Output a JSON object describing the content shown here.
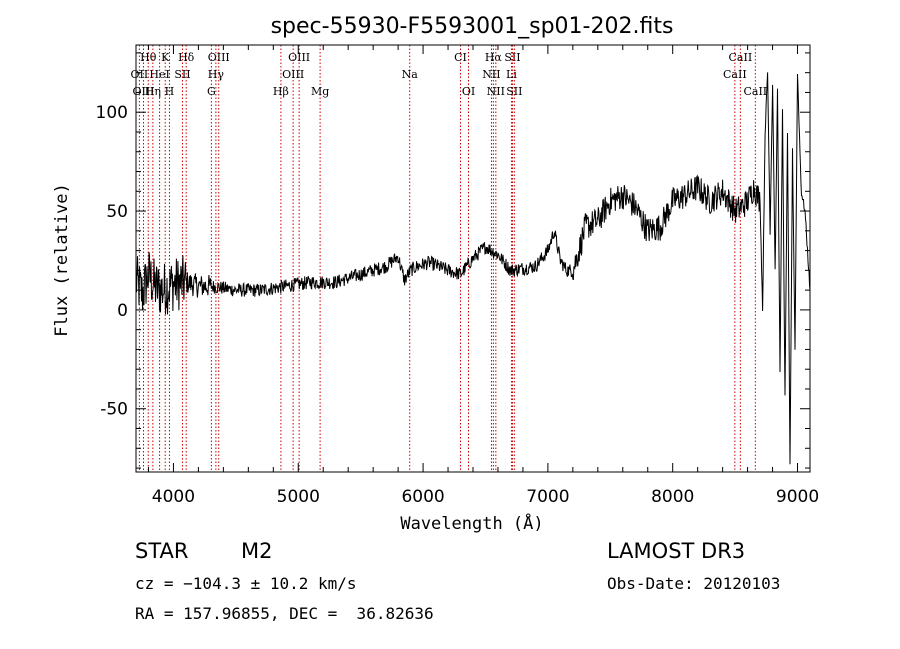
{
  "chart_data": {
    "type": "line",
    "title": "spec-55930-F5593001_sp01-202.fits",
    "xlabel": "Wavelength (Å)",
    "ylabel": "Flux (relative)",
    "xlim": [
      3700,
      9100
    ],
    "ylim": [
      -82,
      134
    ],
    "x_ticks": [
      4000,
      5000,
      6000,
      7000,
      8000,
      9000
    ],
    "y_ticks": [
      -50,
      0,
      50,
      100
    ],
    "spectrum_anchor_points": {
      "wavelength": [
        3700,
        3750,
        3800,
        3850,
        3900,
        4000,
        4100,
        4200,
        4300,
        4500,
        4700,
        4900,
        5100,
        5300,
        5500,
        5700,
        5800,
        5850,
        5900,
        5950,
        6050,
        6200,
        6300,
        6400,
        6500,
        6600,
        6700,
        6900,
        7000,
        7050,
        7100,
        7150,
        7200,
        7250,
        7300,
        7400,
        7500,
        7600,
        7700,
        7800,
        7900,
        8000,
        8100,
        8200,
        8300,
        8400,
        8500,
        8550,
        8600,
        8650,
        8700,
        8720,
        8740,
        8760,
        8780,
        8800,
        8820,
        8840,
        8860,
        8880,
        8900,
        8920,
        8940,
        8960,
        8980,
        9000,
        9030,
        9060,
        9080,
        9100
      ],
      "flux": [
        15,
        8,
        18,
        12,
        10,
        13,
        14,
        12,
        12,
        10,
        10,
        12,
        14,
        14,
        18,
        22,
        27,
        15,
        20,
        22,
        24,
        20,
        18,
        26,
        32,
        28,
        20,
        22,
        30,
        40,
        25,
        20,
        20,
        30,
        42,
        45,
        55,
        58,
        52,
        40,
        42,
        55,
        58,
        62,
        55,
        60,
        50,
        52,
        55,
        62,
        55,
        0,
        90,
        120,
        40,
        115,
        20,
        110,
        -30,
        100,
        -45,
        90,
        -80,
        80,
        -20,
        120,
        60,
        50,
        30,
        10
      ]
    },
    "spectral_lines": [
      {
        "label": "Hθ",
        "wavelength": 3798,
        "row": 1
      },
      {
        "label": "K",
        "wavelength": 3934,
        "row": 1
      },
      {
        "label": "Hδ",
        "wavelength": 4102,
        "row": 1
      },
      {
        "label": "OIII",
        "wavelength": 4363,
        "row": 1
      },
      {
        "label": "OIII",
        "wavelength": 5007,
        "row": 1
      },
      {
        "label": "CI",
        "wavelength": 6300,
        "row": 1
      },
      {
        "label": "Hα",
        "wavelength": 6563,
        "row": 1
      },
      {
        "label": "SII",
        "wavelength": 6716,
        "row": 1
      },
      {
        "label": "CaII",
        "wavelength": 8542,
        "row": 1
      },
      {
        "label": "OII",
        "wavelength": 3727,
        "row": 2
      },
      {
        "label": "HeI",
        "wavelength": 3889,
        "row": 2
      },
      {
        "label": "SII",
        "wavelength": 4072,
        "row": 2
      },
      {
        "label": "Hγ",
        "wavelength": 4340,
        "row": 2
      },
      {
        "label": "OIII",
        "wavelength": 4959,
        "row": 2
      },
      {
        "label": "Na",
        "wavelength": 5893,
        "row": 2
      },
      {
        "label": "NII",
        "wavelength": 6548,
        "row": 2
      },
      {
        "label": "Li",
        "wavelength": 6708,
        "row": 2
      },
      {
        "label": "CaII",
        "wavelength": 8498,
        "row": 2
      },
      {
        "label": "OIII",
        "wavelength": 3760,
        "row": 3
      },
      {
        "label": "Hη",
        "wavelength": 3835,
        "row": 3
      },
      {
        "label": "H",
        "wavelength": 3968,
        "row": 3
      },
      {
        "label": "G",
        "wavelength": 4304,
        "row": 3
      },
      {
        "label": "Hβ",
        "wavelength": 4861,
        "row": 3
      },
      {
        "label": "Mg",
        "wavelength": 5175,
        "row": 3
      },
      {
        "label": "OI",
        "wavelength": 6364,
        "row": 3
      },
      {
        "label": "NII",
        "wavelength": 6583,
        "row": 3
      },
      {
        "label": "SII",
        "wavelength": 6731,
        "row": 3
      },
      {
        "label": "CaII",
        "wavelength": 8662,
        "row": 3
      }
    ]
  },
  "info": {
    "class_label": "STAR",
    "subclass": "M2",
    "survey": "LAMOST DR3",
    "cz": "cz = −104.3 ± 10.2 km/s",
    "obs_date": "Obs-Date: 20120103",
    "coords": "RA = 157.96855, DEC =  36.82636"
  },
  "colors": {
    "axis": "#000000",
    "spectrum": "#000000",
    "line_marker": "#cc0000"
  }
}
